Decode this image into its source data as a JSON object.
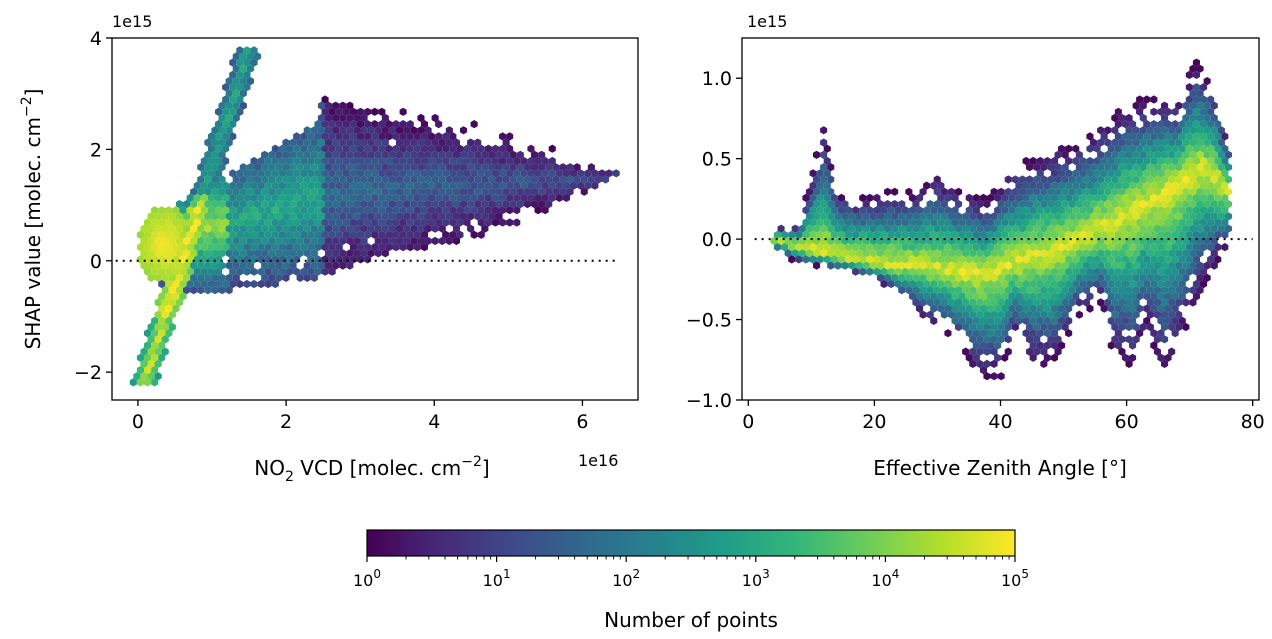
{
  "chart_data": [
    {
      "type": "hexbin",
      "xlabel_main": "NO",
      "xlabel_sub": "2",
      "xlabel_rest": " VCD [molec. cm",
      "xlabel_sup": "−2",
      "xlabel_end": "]",
      "ylabel_main": "SHAP value [molec. cm",
      "ylabel_sup": "−2",
      "ylabel_end": "]",
      "x_offset_label": "1e16",
      "y_offset_label": "1e15",
      "xlim": [
        -0.35,
        6.75
      ],
      "ylim": [
        -2.5,
        4.0
      ],
      "x_ticks": [
        0,
        2,
        4,
        6
      ],
      "x_tick_labels": [
        "0",
        "2",
        "4",
        "6"
      ],
      "y_ticks": [
        -2,
        0,
        2,
        4
      ],
      "y_tick_labels": [
        "−2",
        "0",
        "2",
        "4"
      ],
      "reference_line": {
        "y": 0,
        "x_range": [
          -0.3,
          6.5
        ],
        "style": "dotted"
      },
      "density_clusters": [
        {
          "x": [
            0.0,
            0.6
          ],
          "y": [
            -2.2,
            1.0
          ],
          "max_count": 100000
        },
        {
          "x": [
            0.4,
            1.6
          ],
          "y": [
            1.0,
            3.8
          ],
          "max_count": 1000
        },
        {
          "x": [
            0.4,
            2.4
          ],
          "y": [
            -0.6,
            2.0
          ],
          "max_count": 30000
        },
        {
          "x": [
            2.4,
            6.5
          ],
          "y": [
            -0.2,
            2.9
          ],
          "max_count": 200
        }
      ]
    },
    {
      "type": "hexbin",
      "xlabel": "Effective Zenith Angle [°]",
      "y_offset_label": "1e15",
      "xlim": [
        -1,
        81
      ],
      "ylim": [
        -1.0,
        1.25
      ],
      "x_ticks": [
        0,
        20,
        40,
        60,
        80
      ],
      "x_tick_labels": [
        "0",
        "20",
        "40",
        "60",
        "80"
      ],
      "y_ticks": [
        -1.0,
        -0.5,
        0.0,
        0.5,
        1.0
      ],
      "y_tick_labels": [
        "−1.0",
        "−0.5",
        "0.0",
        "0.5",
        "1.0"
      ],
      "reference_line": {
        "y": 0,
        "x_range": [
          1,
          80
        ],
        "style": "dotted"
      },
      "density_clusters": [
        {
          "x": [
            4,
            76
          ],
          "y": [
            -0.85,
            1.15
          ],
          "max_count": 100000
        }
      ]
    }
  ],
  "colorbar": {
    "label": "Number of points",
    "scale": "log",
    "range": [
      1,
      100000
    ],
    "colormap": "viridis",
    "tick_base": "10",
    "tick_exponents": [
      "0",
      "1",
      "2",
      "3",
      "4",
      "5"
    ],
    "colors": [
      "#440154",
      "#482878",
      "#3e4989",
      "#31688e",
      "#26828e",
      "#1f9e89",
      "#35b779",
      "#6ece58",
      "#b5de2b",
      "#fde725"
    ]
  }
}
